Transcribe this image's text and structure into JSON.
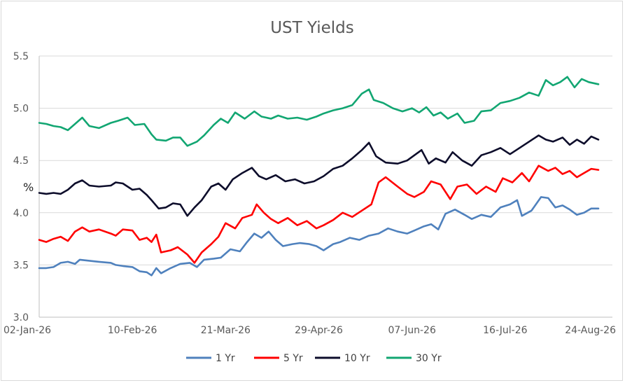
{
  "chart_data": {
    "type": "line",
    "title": "UST Yields",
    "ylabel": "%",
    "xlabel": "",
    "ylim": [
      3.0,
      5.5
    ],
    "yticks": [
      "3.0",
      "3.5",
      "4.0",
      "4.5",
      "5.0",
      "5.5"
    ],
    "xticks": [
      "02-Jan-26",
      "10-Feb-26",
      "21-Mar-26",
      "29-Apr-26",
      "07-Jun-26",
      "16-Jul-26",
      "24-Aug-26"
    ],
    "x_start": "2026-01-02",
    "x_end": "2026-08-24",
    "grid": "horizontal",
    "legend_position": "bottom",
    "series": [
      {
        "name": "1 Yr",
        "color": "#4F81BD",
        "points": [
          [
            "2026-01-02",
            3.47
          ],
          [
            "2026-01-05",
            3.47
          ],
          [
            "2026-01-08",
            3.48
          ],
          [
            "2026-01-11",
            3.52
          ],
          [
            "2026-01-14",
            3.53
          ],
          [
            "2026-01-17",
            3.51
          ],
          [
            "2026-01-19",
            3.55
          ],
          [
            "2026-01-23",
            3.54
          ],
          [
            "2026-01-27",
            3.53
          ],
          [
            "2026-02-01",
            3.52
          ],
          [
            "2026-02-03",
            3.5
          ],
          [
            "2026-02-06",
            3.49
          ],
          [
            "2026-02-10",
            3.48
          ],
          [
            "2026-02-13",
            3.44
          ],
          [
            "2026-02-16",
            3.43
          ],
          [
            "2026-02-18",
            3.4
          ],
          [
            "2026-02-20",
            3.47
          ],
          [
            "2026-02-22",
            3.42
          ],
          [
            "2026-02-26",
            3.47
          ],
          [
            "2026-03-02",
            3.51
          ],
          [
            "2026-03-06",
            3.52
          ],
          [
            "2026-03-09",
            3.48
          ],
          [
            "2026-03-12",
            3.55
          ],
          [
            "2026-03-16",
            3.56
          ],
          [
            "2026-03-19",
            3.57
          ],
          [
            "2026-03-23",
            3.65
          ],
          [
            "2026-03-27",
            3.63
          ],
          [
            "2026-03-30",
            3.72
          ],
          [
            "2026-04-02",
            3.8
          ],
          [
            "2026-04-05",
            3.76
          ],
          [
            "2026-04-08",
            3.82
          ],
          [
            "2026-04-11",
            3.74
          ],
          [
            "2026-04-14",
            3.68
          ],
          [
            "2026-04-18",
            3.7
          ],
          [
            "2026-04-21",
            3.71
          ],
          [
            "2026-04-25",
            3.7
          ],
          [
            "2026-04-28",
            3.68
          ],
          [
            "2026-05-01",
            3.64
          ],
          [
            "2026-05-05",
            3.7
          ],
          [
            "2026-05-08",
            3.72
          ],
          [
            "2026-05-12",
            3.76
          ],
          [
            "2026-05-16",
            3.74
          ],
          [
            "2026-05-20",
            3.78
          ],
          [
            "2026-05-24",
            3.8
          ],
          [
            "2026-05-28",
            3.85
          ],
          [
            "2026-06-01",
            3.82
          ],
          [
            "2026-06-05",
            3.8
          ],
          [
            "2026-06-08",
            3.83
          ],
          [
            "2026-06-12",
            3.87
          ],
          [
            "2026-06-15",
            3.89
          ],
          [
            "2026-06-18",
            3.84
          ],
          [
            "2026-06-21",
            3.99
          ],
          [
            "2026-06-25",
            4.03
          ],
          [
            "2026-06-29",
            3.98
          ],
          [
            "2026-07-02",
            3.94
          ],
          [
            "2026-07-06",
            3.98
          ],
          [
            "2026-07-10",
            3.96
          ],
          [
            "2026-07-14",
            4.05
          ],
          [
            "2026-07-18",
            4.08
          ],
          [
            "2026-07-21",
            4.12
          ],
          [
            "2026-07-23",
            3.97
          ],
          [
            "2026-07-27",
            4.02
          ],
          [
            "2026-07-31",
            4.15
          ],
          [
            "2026-08-03",
            4.14
          ],
          [
            "2026-08-06",
            4.05
          ],
          [
            "2026-08-09",
            4.07
          ],
          [
            "2026-08-12",
            4.03
          ],
          [
            "2026-08-15",
            3.98
          ],
          [
            "2026-08-18",
            4.0
          ],
          [
            "2026-08-21",
            4.04
          ],
          [
            "2026-08-24",
            4.04
          ]
        ]
      },
      {
        "name": "5 Yr",
        "color": "#FF0000",
        "points": [
          [
            "2026-01-02",
            3.74
          ],
          [
            "2026-01-05",
            3.72
          ],
          [
            "2026-01-08",
            3.75
          ],
          [
            "2026-01-11",
            3.77
          ],
          [
            "2026-01-14",
            3.73
          ],
          [
            "2026-01-17",
            3.82
          ],
          [
            "2026-01-20",
            3.86
          ],
          [
            "2026-01-23",
            3.82
          ],
          [
            "2026-01-27",
            3.84
          ],
          [
            "2026-02-01",
            3.8
          ],
          [
            "2026-02-03",
            3.78
          ],
          [
            "2026-02-06",
            3.84
          ],
          [
            "2026-02-10",
            3.83
          ],
          [
            "2026-02-13",
            3.74
          ],
          [
            "2026-02-16",
            3.76
          ],
          [
            "2026-02-18",
            3.72
          ],
          [
            "2026-02-20",
            3.79
          ],
          [
            "2026-02-22",
            3.62
          ],
          [
            "2026-02-26",
            3.64
          ],
          [
            "2026-03-01",
            3.67
          ],
          [
            "2026-03-05",
            3.6
          ],
          [
            "2026-03-08",
            3.52
          ],
          [
            "2026-03-11",
            3.62
          ],
          [
            "2026-03-15",
            3.7
          ],
          [
            "2026-03-18",
            3.77
          ],
          [
            "2026-03-21",
            3.9
          ],
          [
            "2026-03-25",
            3.85
          ],
          [
            "2026-03-28",
            3.95
          ],
          [
            "2026-04-01",
            3.98
          ],
          [
            "2026-04-03",
            4.08
          ],
          [
            "2026-04-06",
            4.0
          ],
          [
            "2026-04-09",
            3.94
          ],
          [
            "2026-04-12",
            3.9
          ],
          [
            "2026-04-16",
            3.95
          ],
          [
            "2026-04-20",
            3.88
          ],
          [
            "2026-04-24",
            3.92
          ],
          [
            "2026-04-28",
            3.85
          ],
          [
            "2026-05-01",
            3.88
          ],
          [
            "2026-05-05",
            3.93
          ],
          [
            "2026-05-09",
            4.0
          ],
          [
            "2026-05-13",
            3.96
          ],
          [
            "2026-05-17",
            4.02
          ],
          [
            "2026-05-21",
            4.08
          ],
          [
            "2026-05-24",
            4.29
          ],
          [
            "2026-05-27",
            4.34
          ],
          [
            "2026-06-01",
            4.25
          ],
          [
            "2026-06-05",
            4.18
          ],
          [
            "2026-06-08",
            4.15
          ],
          [
            "2026-06-12",
            4.2
          ],
          [
            "2026-06-15",
            4.3
          ],
          [
            "2026-06-19",
            4.27
          ],
          [
            "2026-06-23",
            4.13
          ],
          [
            "2026-06-26",
            4.25
          ],
          [
            "2026-06-30",
            4.27
          ],
          [
            "2026-07-04",
            4.18
          ],
          [
            "2026-07-08",
            4.25
          ],
          [
            "2026-07-12",
            4.2
          ],
          [
            "2026-07-15",
            4.33
          ],
          [
            "2026-07-19",
            4.29
          ],
          [
            "2026-07-23",
            4.38
          ],
          [
            "2026-07-26",
            4.3
          ],
          [
            "2026-07-30",
            4.45
          ],
          [
            "2026-08-03",
            4.4
          ],
          [
            "2026-08-06",
            4.43
          ],
          [
            "2026-08-09",
            4.37
          ],
          [
            "2026-08-12",
            4.4
          ],
          [
            "2026-08-15",
            4.34
          ],
          [
            "2026-08-18",
            4.38
          ],
          [
            "2026-08-21",
            4.42
          ],
          [
            "2026-08-24",
            4.41
          ]
        ]
      },
      {
        "name": "10 Yr",
        "color": "#0D0D2B",
        "points": [
          [
            "2026-01-02",
            4.19
          ],
          [
            "2026-01-05",
            4.18
          ],
          [
            "2026-01-08",
            4.19
          ],
          [
            "2026-01-11",
            4.18
          ],
          [
            "2026-01-14",
            4.22
          ],
          [
            "2026-01-17",
            4.28
          ],
          [
            "2026-01-20",
            4.31
          ],
          [
            "2026-01-23",
            4.26
          ],
          [
            "2026-01-27",
            4.25
          ],
          [
            "2026-02-01",
            4.26
          ],
          [
            "2026-02-03",
            4.29
          ],
          [
            "2026-02-06",
            4.28
          ],
          [
            "2026-02-10",
            4.22
          ],
          [
            "2026-02-13",
            4.23
          ],
          [
            "2026-02-16",
            4.17
          ],
          [
            "2026-02-18",
            4.12
          ],
          [
            "2026-02-21",
            4.04
          ],
          [
            "2026-02-24",
            4.05
          ],
          [
            "2026-02-27",
            4.09
          ],
          [
            "2026-03-02",
            4.08
          ],
          [
            "2026-03-05",
            3.97
          ],
          [
            "2026-03-08",
            4.05
          ],
          [
            "2026-03-11",
            4.12
          ],
          [
            "2026-03-15",
            4.25
          ],
          [
            "2026-03-18",
            4.28
          ],
          [
            "2026-03-21",
            4.22
          ],
          [
            "2026-03-24",
            4.32
          ],
          [
            "2026-03-28",
            4.38
          ],
          [
            "2026-04-01",
            4.43
          ],
          [
            "2026-04-04",
            4.35
          ],
          [
            "2026-04-07",
            4.32
          ],
          [
            "2026-04-11",
            4.36
          ],
          [
            "2026-04-15",
            4.3
          ],
          [
            "2026-04-19",
            4.32
          ],
          [
            "2026-04-23",
            4.28
          ],
          [
            "2026-04-27",
            4.3
          ],
          [
            "2026-05-01",
            4.35
          ],
          [
            "2026-05-05",
            4.42
          ],
          [
            "2026-05-09",
            4.45
          ],
          [
            "2026-05-13",
            4.52
          ],
          [
            "2026-05-17",
            4.6
          ],
          [
            "2026-05-20",
            4.67
          ],
          [
            "2026-05-23",
            4.54
          ],
          [
            "2026-05-27",
            4.48
          ],
          [
            "2026-06-01",
            4.47
          ],
          [
            "2026-06-05",
            4.5
          ],
          [
            "2026-06-08",
            4.55
          ],
          [
            "2026-06-11",
            4.6
          ],
          [
            "2026-06-14",
            4.47
          ],
          [
            "2026-06-17",
            4.52
          ],
          [
            "2026-06-21",
            4.48
          ],
          [
            "2026-06-24",
            4.58
          ],
          [
            "2026-06-28",
            4.5
          ],
          [
            "2026-07-02",
            4.45
          ],
          [
            "2026-07-06",
            4.55
          ],
          [
            "2026-07-10",
            4.58
          ],
          [
            "2026-07-14",
            4.62
          ],
          [
            "2026-07-18",
            4.56
          ],
          [
            "2026-07-22",
            4.62
          ],
          [
            "2026-07-26",
            4.68
          ],
          [
            "2026-07-30",
            4.74
          ],
          [
            "2026-08-02",
            4.7
          ],
          [
            "2026-08-05",
            4.68
          ],
          [
            "2026-08-09",
            4.72
          ],
          [
            "2026-08-12",
            4.65
          ],
          [
            "2026-08-15",
            4.7
          ],
          [
            "2026-08-18",
            4.66
          ],
          [
            "2026-08-21",
            4.73
          ],
          [
            "2026-08-24",
            4.7
          ]
        ]
      },
      {
        "name": "30 Yr",
        "color": "#12A672",
        "points": [
          [
            "2026-01-02",
            4.86
          ],
          [
            "2026-01-05",
            4.85
          ],
          [
            "2026-01-08",
            4.83
          ],
          [
            "2026-01-11",
            4.82
          ],
          [
            "2026-01-14",
            4.79
          ],
          [
            "2026-01-17",
            4.85
          ],
          [
            "2026-01-20",
            4.91
          ],
          [
            "2026-01-23",
            4.83
          ],
          [
            "2026-01-27",
            4.81
          ],
          [
            "2026-02-01",
            4.86
          ],
          [
            "2026-02-04",
            4.88
          ],
          [
            "2026-02-08",
            4.91
          ],
          [
            "2026-02-11",
            4.84
          ],
          [
            "2026-02-15",
            4.85
          ],
          [
            "2026-02-18",
            4.75
          ],
          [
            "2026-02-20",
            4.7
          ],
          [
            "2026-02-24",
            4.69
          ],
          [
            "2026-02-27",
            4.72
          ],
          [
            "2026-03-02",
            4.72
          ],
          [
            "2026-03-05",
            4.64
          ],
          [
            "2026-03-09",
            4.68
          ],
          [
            "2026-03-12",
            4.74
          ],
          [
            "2026-03-16",
            4.84
          ],
          [
            "2026-03-19",
            4.9
          ],
          [
            "2026-03-22",
            4.86
          ],
          [
            "2026-03-25",
            4.96
          ],
          [
            "2026-03-29",
            4.9
          ],
          [
            "2026-04-02",
            4.97
          ],
          [
            "2026-04-05",
            4.92
          ],
          [
            "2026-04-09",
            4.9
          ],
          [
            "2026-04-12",
            4.93
          ],
          [
            "2026-04-16",
            4.9
          ],
          [
            "2026-04-20",
            4.91
          ],
          [
            "2026-04-24",
            4.89
          ],
          [
            "2026-04-28",
            4.92
          ],
          [
            "2026-05-01",
            4.95
          ],
          [
            "2026-05-05",
            4.98
          ],
          [
            "2026-05-09",
            5.0
          ],
          [
            "2026-05-13",
            5.03
          ],
          [
            "2026-05-17",
            5.14
          ],
          [
            "2026-05-20",
            5.18
          ],
          [
            "2026-05-22",
            5.08
          ],
          [
            "2026-05-26",
            5.05
          ],
          [
            "2026-05-30",
            5.0
          ],
          [
            "2026-06-03",
            4.97
          ],
          [
            "2026-06-07",
            5.0
          ],
          [
            "2026-06-10",
            4.96
          ],
          [
            "2026-06-13",
            5.01
          ],
          [
            "2026-06-16",
            4.93
          ],
          [
            "2026-06-19",
            4.96
          ],
          [
            "2026-06-22",
            4.9
          ],
          [
            "2026-06-26",
            4.95
          ],
          [
            "2026-06-29",
            4.86
          ],
          [
            "2026-07-03",
            4.88
          ],
          [
            "2026-07-06",
            4.97
          ],
          [
            "2026-07-10",
            4.98
          ],
          [
            "2026-07-14",
            5.05
          ],
          [
            "2026-07-18",
            5.07
          ],
          [
            "2026-07-22",
            5.1
          ],
          [
            "2026-07-26",
            5.15
          ],
          [
            "2026-07-30",
            5.12
          ],
          [
            "2026-08-02",
            5.27
          ],
          [
            "2026-08-05",
            5.22
          ],
          [
            "2026-08-08",
            5.25
          ],
          [
            "2026-08-11",
            5.3
          ],
          [
            "2026-08-14",
            5.2
          ],
          [
            "2026-08-17",
            5.28
          ],
          [
            "2026-08-20",
            5.25
          ],
          [
            "2026-08-24",
            5.23
          ]
        ]
      }
    ]
  }
}
